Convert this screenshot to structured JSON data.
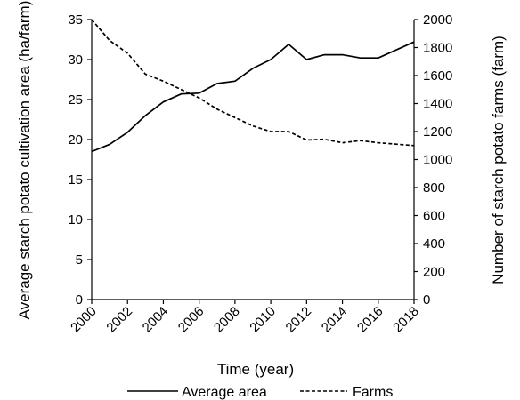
{
  "chart_data": {
    "type": "line",
    "x": [
      2000,
      2001,
      2002,
      2003,
      2004,
      2005,
      2006,
      2007,
      2008,
      2009,
      2010,
      2011,
      2012,
      2013,
      2014,
      2015,
      2016,
      2017,
      2018
    ],
    "x_ticks": [
      "2000",
      "2002",
      "2004",
      "2006",
      "2008",
      "2010",
      "2012",
      "2014",
      "2016",
      "2018"
    ],
    "xlabel": "Time (year)",
    "xlim": [
      2000,
      2018
    ],
    "ylabel_left": "Average starch potato cultivation area (ha/farm)",
    "ylim_left": [
      0,
      35
    ],
    "yticks_left": [
      "0",
      "5",
      "10",
      "15",
      "20",
      "25",
      "30",
      "35"
    ],
    "ylabel_right": "Number of starch potato farms (farm)",
    "ylim_right": [
      0,
      2000
    ],
    "yticks_right": [
      "0",
      "200",
      "400",
      "600",
      "800",
      "1000",
      "1200",
      "1400",
      "1600",
      "1800",
      "2000"
    ],
    "grid": false,
    "legend_position": "bottom",
    "series": [
      {
        "name": "Average area",
        "axis": "left",
        "line_style": "solid",
        "values": [
          18.5,
          19.4,
          20.9,
          23.0,
          24.7,
          25.7,
          25.8,
          27.0,
          27.3,
          28.9,
          30.0,
          31.9,
          30.0,
          30.6,
          30.6,
          30.2,
          30.2,
          31.2,
          32.2
        ]
      },
      {
        "name": "Farms",
        "axis": "right",
        "line_style": "dashed",
        "values": [
          2000,
          1850,
          1760,
          1610,
          1560,
          1500,
          1440,
          1360,
          1300,
          1240,
          1200,
          1200,
          1140,
          1145,
          1120,
          1135,
          1120,
          1110,
          1100
        ]
      }
    ],
    "colors": {
      "axis": "#000000",
      "line": "#000000",
      "background": "#ffffff"
    }
  }
}
